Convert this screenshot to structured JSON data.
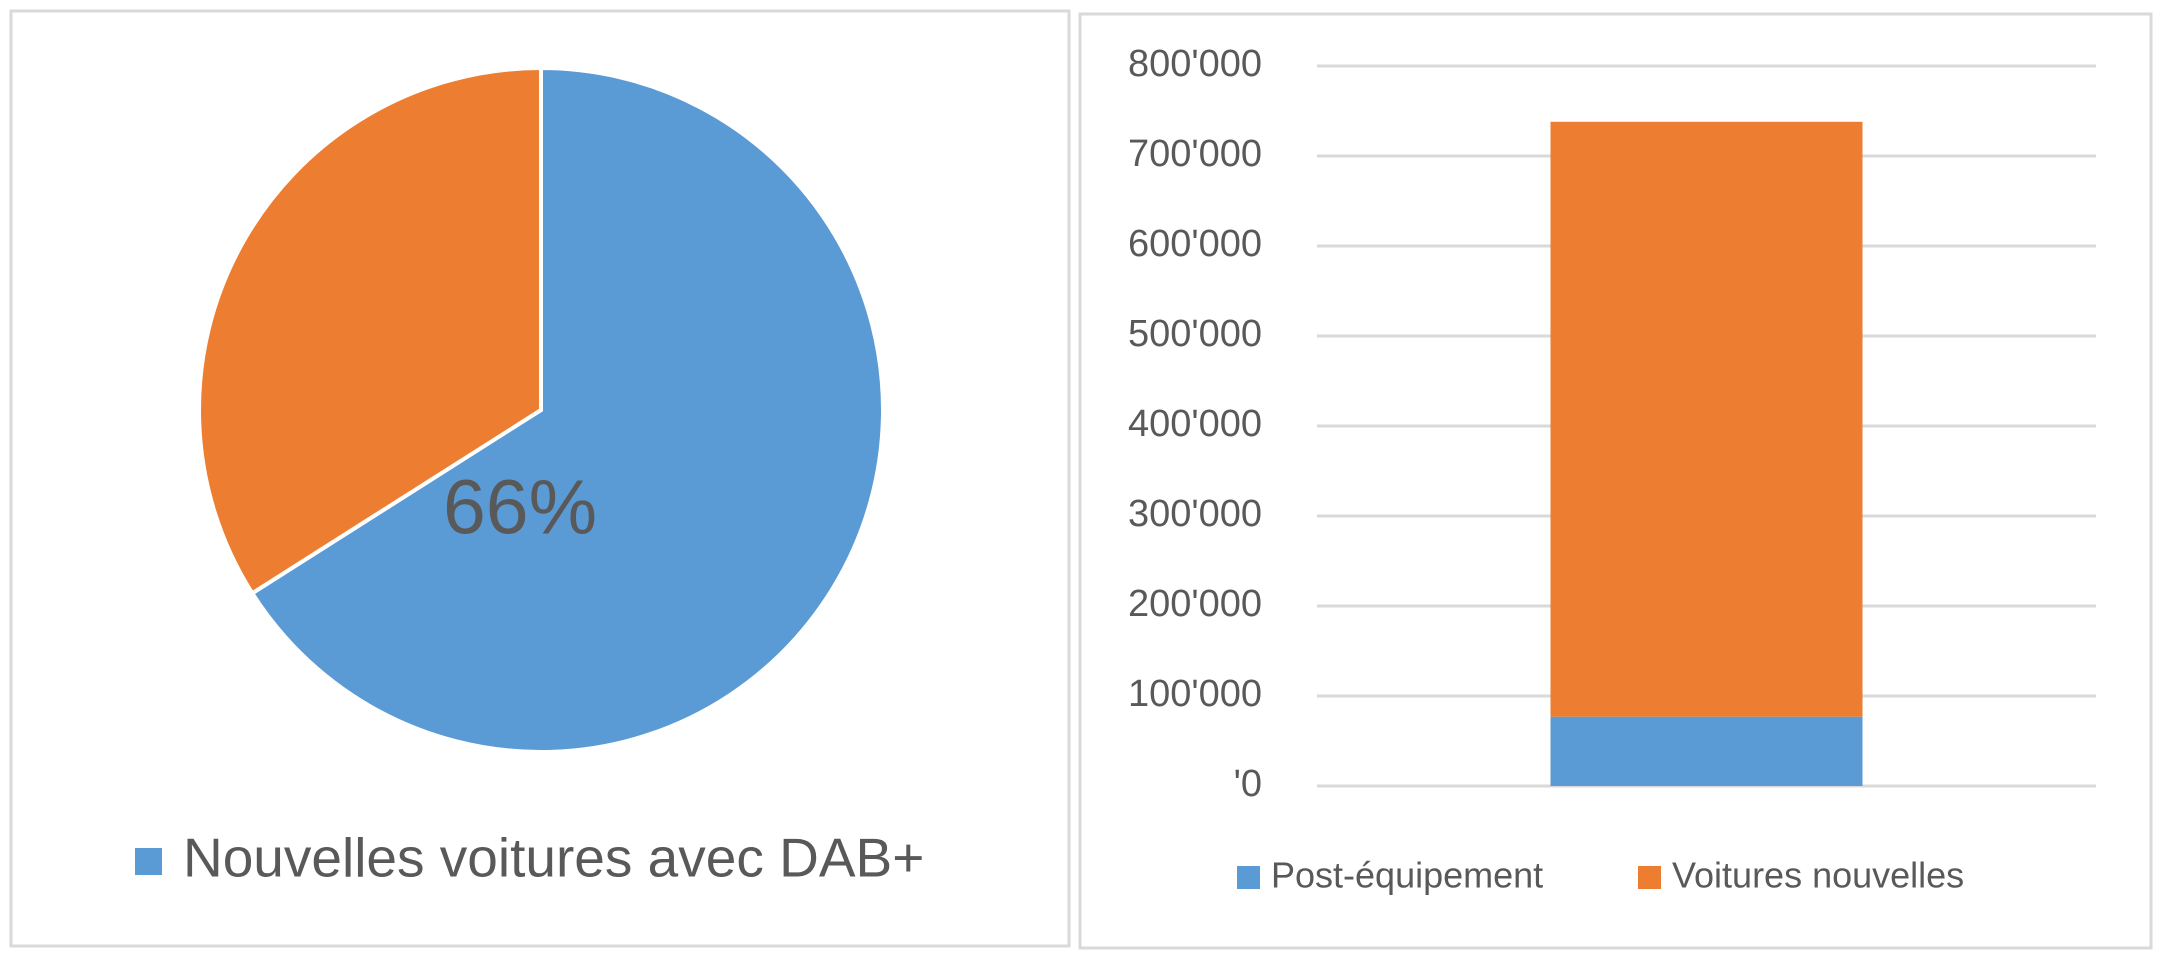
{
  "chart_data": [
    {
      "type": "pie",
      "categories": [
        "Nouvelles voitures avec DAB+",
        null
      ],
      "values": [
        66,
        34
      ],
      "value_labels": [
        "66%",
        null
      ],
      "colors": [
        "#5b9bd5",
        "#ed7d31"
      ]
    },
    {
      "type": "stacked_bar",
      "categories": [
        null
      ],
      "series": [
        {
          "name": "Post-équipement",
          "color": "#5b9bd5",
          "values": [
            77000
          ]
        },
        {
          "name": "Voitures nouvelles",
          "color": "#ed7d31",
          "values": [
            661000
          ]
        }
      ],
      "ylim": [
        0,
        800000
      ],
      "yticks": [
        {
          "value": 0,
          "label": "'0"
        },
        {
          "value": 100000,
          "label": "100'000"
        },
        {
          "value": 200000,
          "label": "200'000"
        },
        {
          "value": 300000,
          "label": "300'000"
        },
        {
          "value": 400000,
          "label": "400'000"
        },
        {
          "value": 500000,
          "label": "500'000"
        },
        {
          "value": 600000,
          "label": "600'000"
        },
        {
          "value": 700000,
          "label": "700'000"
        },
        {
          "value": 800000,
          "label": "800'000"
        }
      ],
      "grid": true
    }
  ]
}
